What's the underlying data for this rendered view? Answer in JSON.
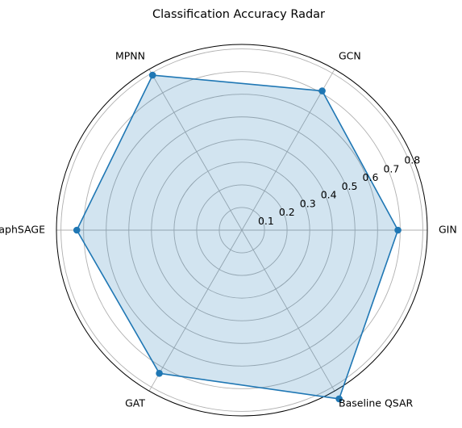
{
  "chart_data": {
    "type": "radar",
    "title": "Classification Accuracy Radar",
    "categories": [
      "GIN",
      "GCN",
      "MPNN",
      "GraphSAGE",
      "GAT",
      "Baseline QSAR"
    ],
    "series": [
      {
        "values": [
          0.69,
          0.71,
          0.79,
          0.73,
          0.73,
          0.86
        ]
      }
    ],
    "rlim": [
      0,
      0.82
    ],
    "rticks": [
      0.1,
      0.2,
      0.3,
      0.4,
      0.5,
      0.6,
      0.7,
      0.8
    ],
    "rtick_labels": [
      "0.1",
      "0.2",
      "0.3",
      "0.4",
      "0.5",
      "0.6",
      "0.7",
      "0.8"
    ],
    "grid": true,
    "line_color": "#1f77b4",
    "fill_color": "#1f77b4",
    "grid_color": "#b0b0b0"
  }
}
